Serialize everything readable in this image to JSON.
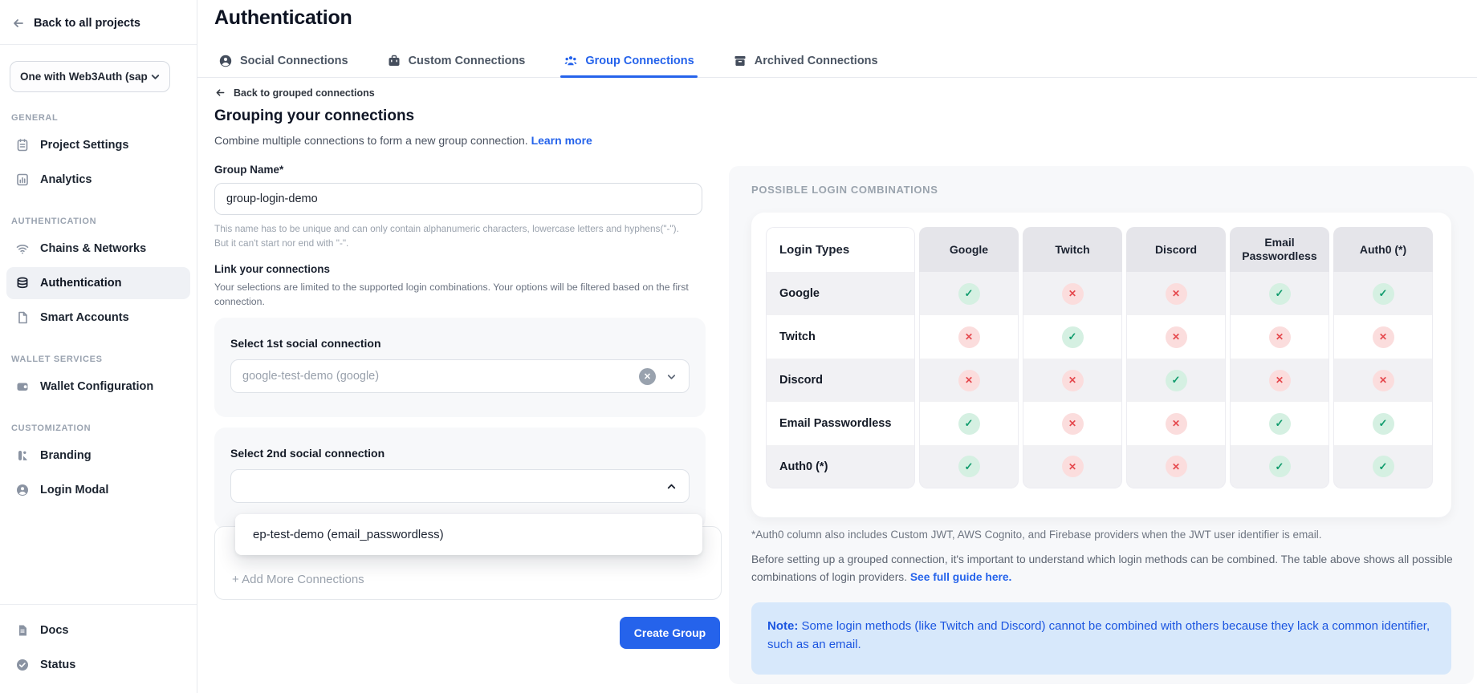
{
  "colors": {
    "accent_blue": "#2563eb",
    "success_green": "#119c6d",
    "success_bg": "#d5f0e2",
    "danger_red": "#e5484d",
    "danger_bg": "#fbdddd",
    "note_bg": "#d7e8fb",
    "panel_bg": "#f7f8fa"
  },
  "sidebar": {
    "back_label": "Back to all projects",
    "project_selector": "One with Web3Auth (sap",
    "sections": [
      {
        "label": "GENERAL",
        "items": [
          {
            "label": "Project Settings"
          },
          {
            "label": "Analytics"
          }
        ]
      },
      {
        "label": "AUTHENTICATION",
        "items": [
          {
            "label": "Chains & Networks"
          },
          {
            "label": "Authentication"
          },
          {
            "label": "Smart Accounts"
          }
        ]
      },
      {
        "label": "WALLET SERVICES",
        "items": [
          {
            "label": "Wallet Configuration"
          }
        ]
      },
      {
        "label": "CUSTOMIZATION",
        "items": [
          {
            "label": "Branding"
          },
          {
            "label": "Login Modal"
          }
        ]
      }
    ],
    "footer": {
      "docs": "Docs",
      "status": "Status"
    }
  },
  "header": {
    "title": "Authentication",
    "tabs": [
      {
        "label": "Social Connections"
      },
      {
        "label": "Custom Connections"
      },
      {
        "label": "Group Connections"
      },
      {
        "label": "Archived Connections"
      }
    ]
  },
  "form": {
    "back_link": "Back to grouped connections",
    "heading": "Grouping your connections",
    "description": "Combine multiple connections to form a new group connection.",
    "learn_more": "Learn more",
    "group_name_label": "Group Name*",
    "group_name_value": "group-login-demo",
    "group_name_help_1": "This name has to be unique and can only contain alphanumeric characters, lowercase letters and hyphens(\"-\").",
    "group_name_help_2": "But it can't start nor end with \"-\".",
    "link_label": "Link your connections",
    "link_help_1": "Your selections are limited to the supported login combinations. Your options will be filtered based on the first",
    "link_help_2": "connection.",
    "select1_label": "Select 1st social connection",
    "select1_value": "google-test-demo (google)",
    "select2_label": "Select 2nd social connection",
    "select2_value": "",
    "dropdown_option": "ep-test-demo (email_passwordless)",
    "add_more_label": "+ Add More Connections",
    "create_button": "Create Group"
  },
  "combinations_panel": {
    "title": "POSSIBLE LOGIN COMBINATIONS",
    "footnote": "*Auth0 column also includes Custom JWT, AWS Cognito, and Firebase providers when the JWT user identifier is email.",
    "description": "Before setting up a grouped connection, it's important to understand which login methods can be combined. The table above shows all possible combinations of login providers. ",
    "guide_link": "See full guide here.",
    "note_label": "Note:",
    "note_text": " Some login methods (like Twitch and Discord) cannot be combined with others because they lack a common identifier, such as an email."
  },
  "chart_data": {
    "type": "table",
    "title": "POSSIBLE LOGIN COMBINATIONS",
    "row_header": "Login Types",
    "columns": [
      "Google",
      "Twitch",
      "Discord",
      "Email Passwordless",
      "Auth0 (*)"
    ],
    "rows": [
      {
        "label": "Google",
        "values": [
          "yes",
          "no",
          "no",
          "yes",
          "yes"
        ]
      },
      {
        "label": "Twitch",
        "values": [
          "no",
          "yes",
          "no",
          "no",
          "no"
        ]
      },
      {
        "label": "Discord",
        "values": [
          "no",
          "no",
          "yes",
          "no",
          "no"
        ]
      },
      {
        "label": "Email Passwordless",
        "values": [
          "yes",
          "no",
          "no",
          "yes",
          "yes"
        ]
      },
      {
        "label": "Auth0 (*)",
        "values": [
          "yes",
          "no",
          "no",
          "yes",
          "yes"
        ]
      }
    ]
  }
}
